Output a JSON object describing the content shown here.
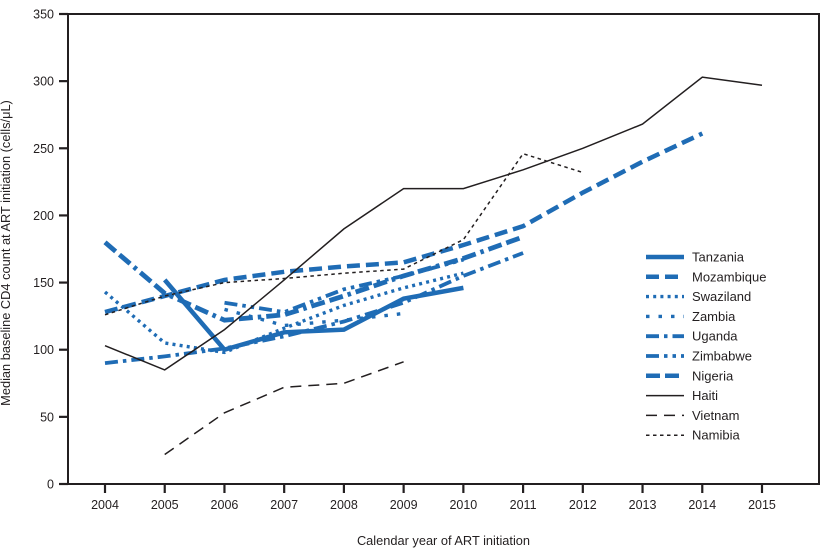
{
  "figure": {
    "xlabel": "Calendar year of ART initiation",
    "ylabel": "Median baseline CD4 count at ART initiation (cells/μL)"
  },
  "chart_data": {
    "type": "line",
    "title": "",
    "xlabel": "Calendar year of ART initiation",
    "ylabel": "Median baseline CD4 count at ART initiation (cells/μL)",
    "x_ticks": [
      2004,
      2005,
      2006,
      2007,
      2008,
      2009,
      2010,
      2011,
      2012,
      2013,
      2014,
      2015
    ],
    "xlim": [
      2003.4,
      2015.95
    ],
    "ylim": [
      0,
      350
    ],
    "y_tick_step": 50,
    "grid": false,
    "legend_position": "inside-right",
    "colors": {
      "blue": "#1f6cb5",
      "black": "#231f20"
    },
    "series": [
      {
        "name": "Tanzania",
        "color": "#1f6cb5",
        "style": "solid",
        "width": 4.5,
        "points": [
          [
            2005,
            152
          ],
          [
            2006,
            100
          ],
          [
            2007,
            113
          ],
          [
            2008,
            115
          ],
          [
            2009,
            138
          ],
          [
            2010,
            146
          ]
        ]
      },
      {
        "name": "Mozambique",
        "color": "#1f6cb5",
        "style": "dash",
        "width": 4.5,
        "points": [
          [
            2004,
            128
          ],
          [
            2005,
            140
          ],
          [
            2006,
            152
          ],
          [
            2007,
            158
          ],
          [
            2008,
            162
          ],
          [
            2009,
            165
          ],
          [
            2010,
            178
          ],
          [
            2011,
            192
          ],
          [
            2012,
            217
          ],
          [
            2013,
            240
          ],
          [
            2014,
            261
          ]
        ]
      },
      {
        "name": "Swaziland",
        "color": "#1f6cb5",
        "style": "dot-dense",
        "width": 3.4,
        "points": [
          [
            2004,
            143
          ],
          [
            2005,
            105
          ],
          [
            2006,
            98
          ],
          [
            2007,
            116
          ],
          [
            2008,
            133
          ],
          [
            2009,
            146
          ],
          [
            2010,
            157
          ]
        ]
      },
      {
        "name": "Zambia",
        "color": "#1f6cb5",
        "style": "dot-sparse",
        "width": 3.4,
        "points": [
          [
            2006,
            130
          ],
          [
            2007,
            118
          ],
          [
            2008,
            122
          ],
          [
            2009,
            127
          ]
        ]
      },
      {
        "name": "Uganda",
        "color": "#1f6cb5",
        "style": "dash-dot",
        "width": 3.8,
        "points": [
          [
            2004,
            90
          ],
          [
            2005,
            95
          ],
          [
            2006,
            101
          ],
          [
            2007,
            110
          ],
          [
            2008,
            121
          ],
          [
            2009,
            135
          ],
          [
            2010,
            155
          ],
          [
            2011,
            172
          ]
        ]
      },
      {
        "name": "Zimbabwe",
        "color": "#1f6cb5",
        "style": "dash-dot-dot",
        "width": 3.8,
        "points": [
          [
            2006,
            135
          ],
          [
            2007,
            128
          ],
          [
            2008,
            145
          ],
          [
            2009,
            155
          ],
          [
            2010,
            167
          ]
        ]
      },
      {
        "name": "Nigeria",
        "color": "#1f6cb5",
        "style": "dash-dash-dot",
        "width": 4.8,
        "points": [
          [
            2004,
            180
          ],
          [
            2005,
            142
          ],
          [
            2006,
            122
          ],
          [
            2007,
            126
          ],
          [
            2008,
            140
          ],
          [
            2009,
            155
          ],
          [
            2010,
            168
          ],
          [
            2011,
            184
          ]
        ]
      },
      {
        "name": "Haiti",
        "color": "#231f20",
        "style": "solid",
        "width": 1.5,
        "points": [
          [
            2004,
            103
          ],
          [
            2005,
            85
          ],
          [
            2006,
            115
          ],
          [
            2007,
            152
          ],
          [
            2008,
            190
          ],
          [
            2009,
            220
          ],
          [
            2010,
            220
          ],
          [
            2011,
            234
          ],
          [
            2012,
            250
          ],
          [
            2013,
            268
          ],
          [
            2014,
            303
          ],
          [
            2015,
            297
          ]
        ]
      },
      {
        "name": "Vietnam",
        "color": "#231f20",
        "style": "dash-black",
        "width": 1.5,
        "points": [
          [
            2005,
            22
          ],
          [
            2006,
            53
          ],
          [
            2007,
            72
          ],
          [
            2008,
            75
          ],
          [
            2009,
            91
          ]
        ]
      },
      {
        "name": "Namibia",
        "color": "#231f20",
        "style": "dot-black",
        "width": 1.5,
        "points": [
          [
            2004,
            126
          ],
          [
            2005,
            140
          ],
          [
            2006,
            150
          ],
          [
            2007,
            153
          ],
          [
            2008,
            157
          ],
          [
            2009,
            160
          ],
          [
            2010,
            182
          ],
          [
            2011,
            246
          ],
          [
            2012,
            232
          ]
        ]
      }
    ]
  }
}
